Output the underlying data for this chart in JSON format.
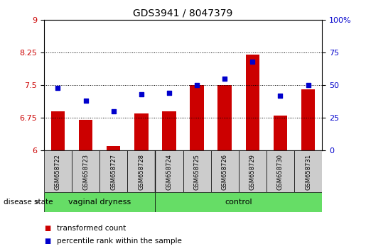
{
  "title": "GDS3941 / 8047379",
  "samples": [
    "GSM658722",
    "GSM658723",
    "GSM658727",
    "GSM658728",
    "GSM658724",
    "GSM658725",
    "GSM658726",
    "GSM658729",
    "GSM658730",
    "GSM658731"
  ],
  "red_values": [
    6.9,
    6.7,
    6.1,
    6.85,
    6.9,
    7.5,
    7.5,
    8.2,
    6.8,
    7.4
  ],
  "blue_values": [
    48,
    38,
    30,
    43,
    44,
    50,
    55,
    68,
    42,
    50
  ],
  "ylim_left": [
    6,
    9
  ],
  "ylim_right": [
    0,
    100
  ],
  "yticks_left": [
    6,
    6.75,
    7.5,
    8.25,
    9
  ],
  "yticks_right": [
    0,
    25,
    50,
    75,
    100
  ],
  "group1_label": "vaginal dryness",
  "group2_label": "control",
  "group1_count": 4,
  "group2_count": 6,
  "legend1": "transformed count",
  "legend2": "percentile rank within the sample",
  "disease_state_label": "disease state",
  "red_color": "#cc0000",
  "blue_color": "#0000cc",
  "bar_width": 0.5,
  "dotted_line_color": "#000000",
  "group_bg_color": "#66dd66",
  "sample_bg_color": "#cccccc",
  "ylabel_left_color": "#cc0000",
  "ylabel_right_color": "#0000cc",
  "fig_width": 5.15,
  "fig_height": 3.54
}
